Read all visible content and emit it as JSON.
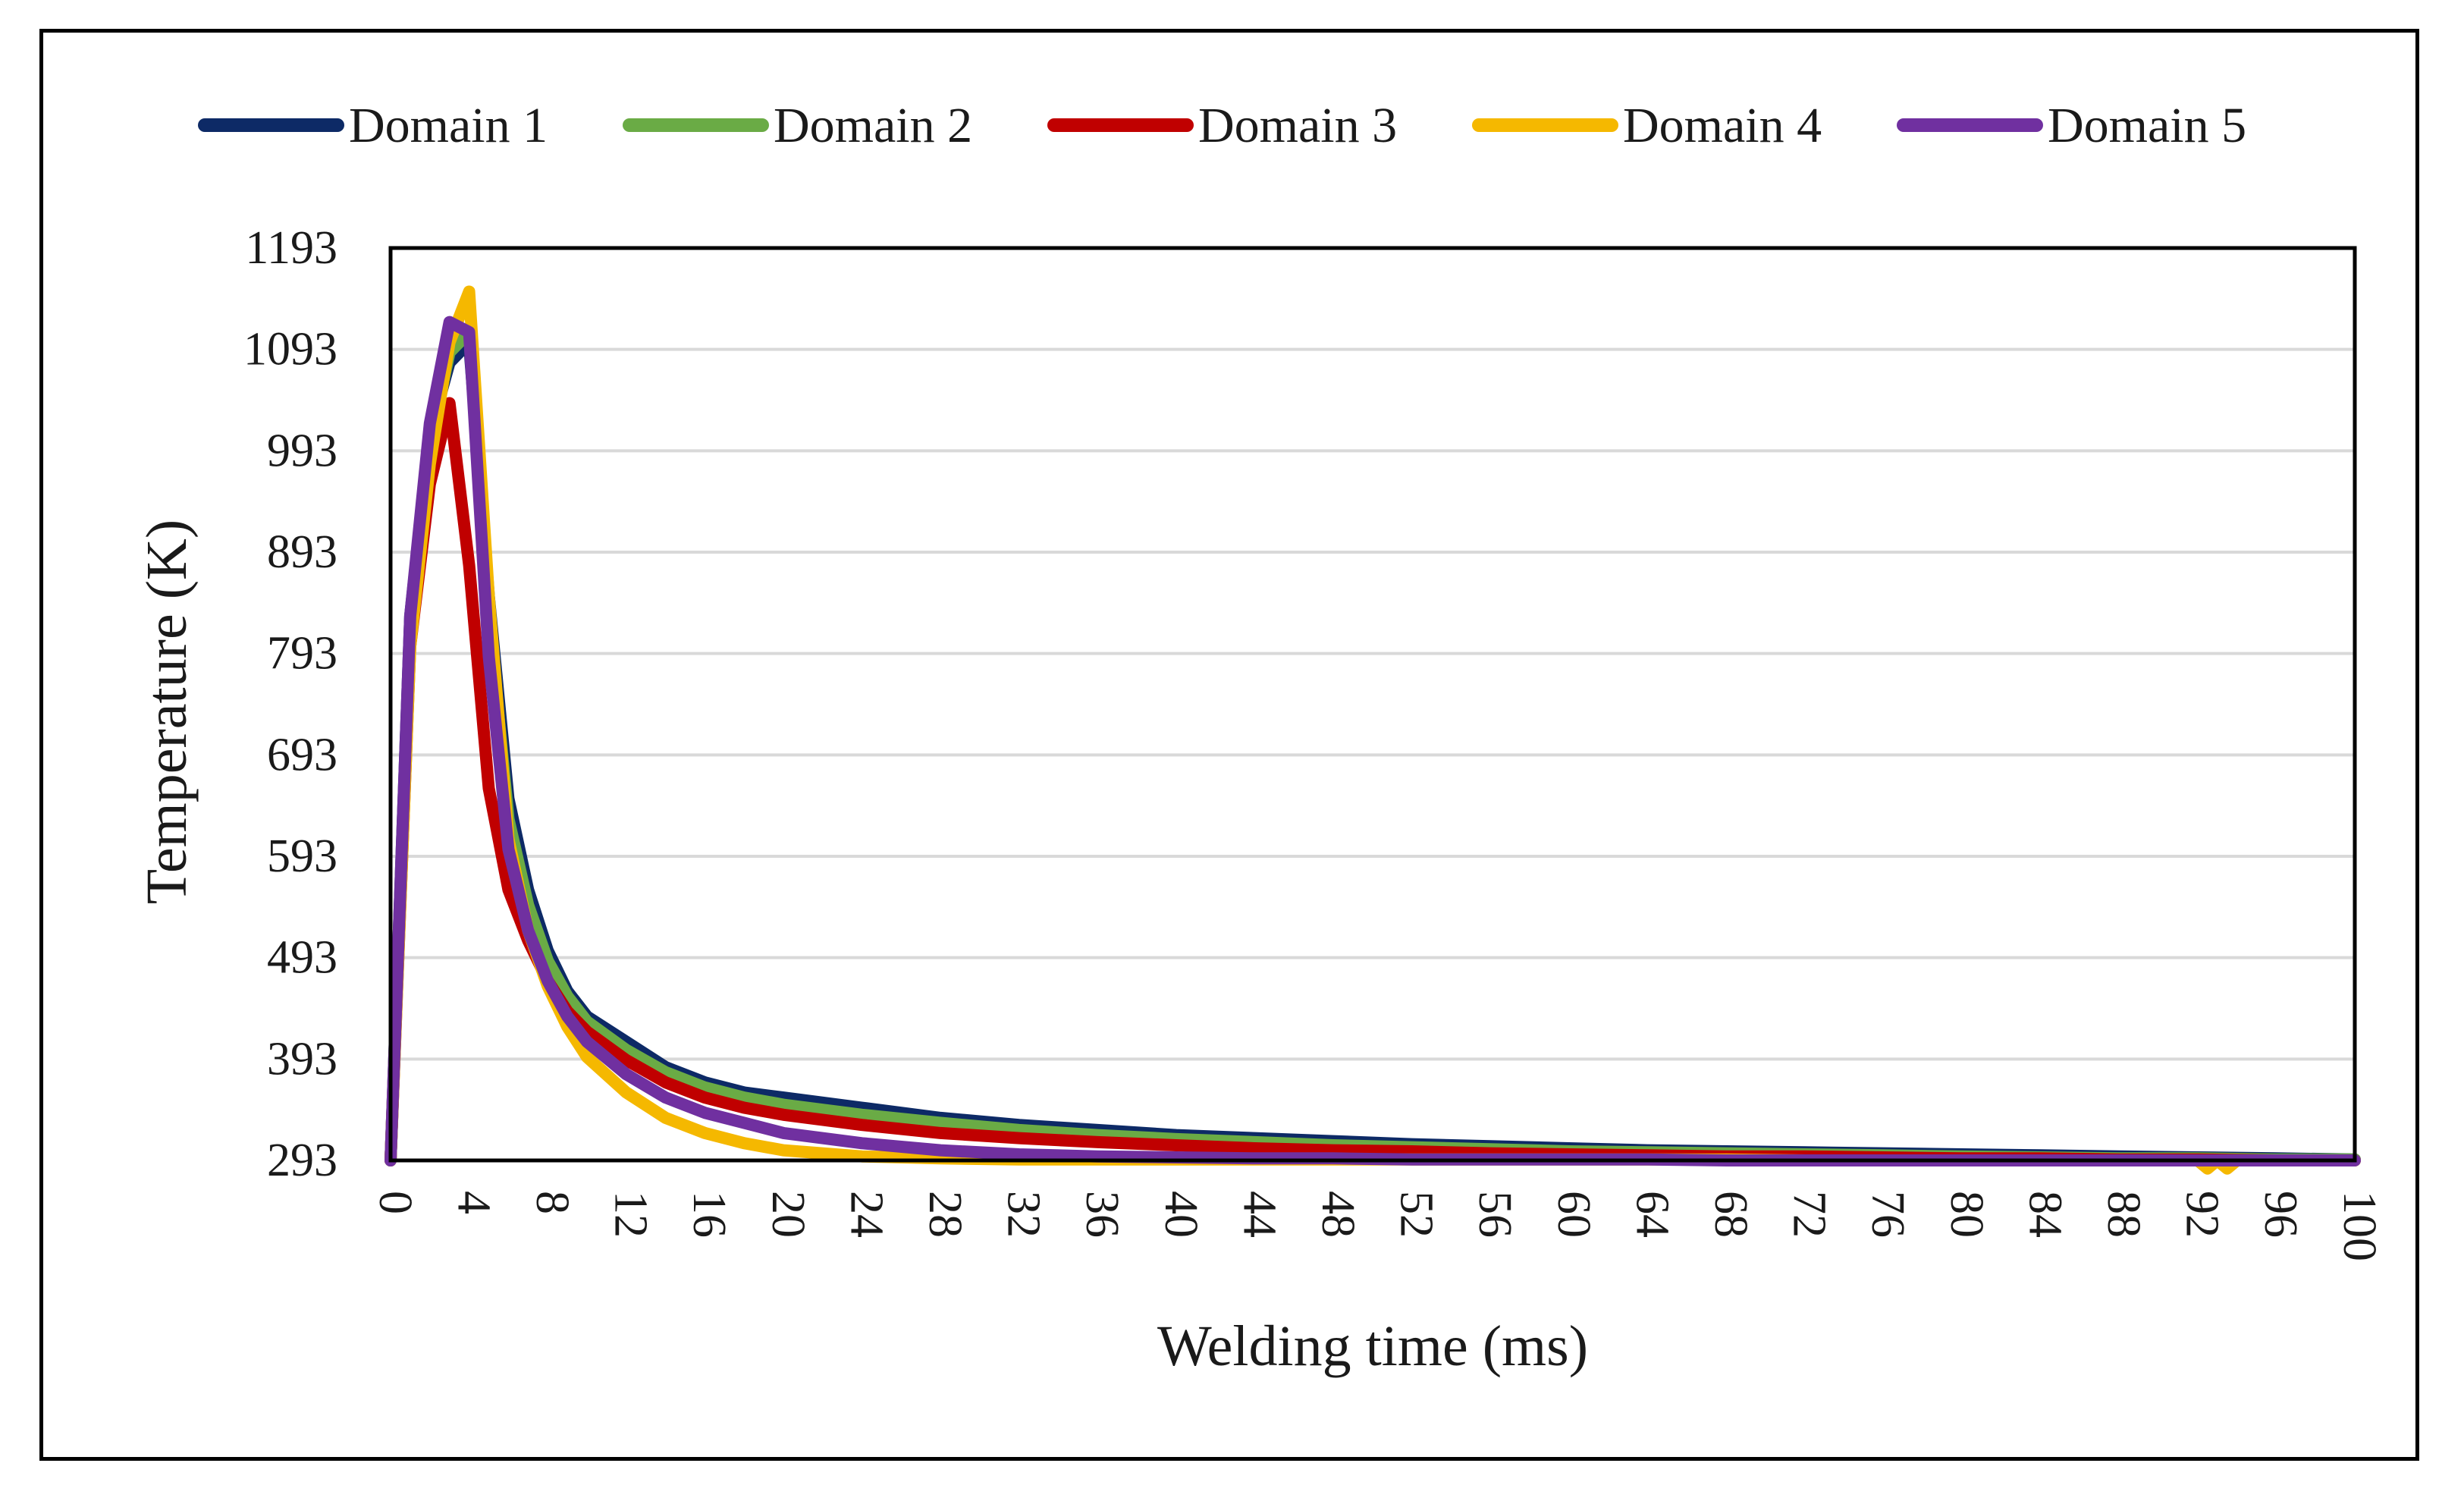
{
  "chart_data": {
    "type": "line",
    "title": "",
    "xlabel": "Welding time (ms)",
    "ylabel": "Temperature (K)",
    "xlim": [
      0,
      100
    ],
    "ylim": [
      293,
      1193
    ],
    "x_ticks": [
      "0",
      "4",
      "8",
      "12",
      "16",
      "20",
      "24",
      "28",
      "32",
      "36",
      "40",
      "44",
      "48",
      "52",
      "56",
      "60",
      "64",
      "68",
      "72",
      "76",
      "80",
      "84",
      "88",
      "92",
      "96",
      "100"
    ],
    "y_ticks": [
      "1193",
      "1093",
      "993",
      "893",
      "793",
      "693",
      "593",
      "493",
      "393",
      "293"
    ],
    "grid": "horizontal",
    "legend_position": "top",
    "series": [
      {
        "name": "Domain 1",
        "color": "#0d2a66",
        "x": [
          0,
          1,
          2,
          3,
          4,
          5,
          6,
          7,
          8,
          9,
          10,
          12,
          14,
          16,
          18,
          20,
          24,
          28,
          32,
          36,
          40,
          44,
          48,
          52,
          56,
          60,
          64,
          68,
          72,
          76,
          80,
          84,
          88,
          92,
          96,
          100
        ],
        "y": [
          293,
          830,
          1010,
          1080,
          1100,
          850,
          650,
          560,
          500,
          460,
          435,
          410,
          385,
          370,
          360,
          355,
          345,
          335,
          328,
          323,
          318,
          315,
          312,
          309,
          307,
          305,
          303,
          302,
          301,
          300,
          299,
          298,
          297,
          296,
          295,
          294
        ]
      },
      {
        "name": "Domain 2",
        "color": "#6aab45",
        "x": [
          0,
          1,
          2,
          3,
          4,
          5,
          6,
          7,
          8,
          9,
          10,
          12,
          14,
          16,
          18,
          20,
          24,
          28,
          32,
          36,
          40,
          44,
          48,
          52,
          56,
          60,
          64,
          68,
          72,
          76,
          80,
          84,
          88,
          92,
          96,
          100
        ],
        "y": [
          293,
          820,
          1000,
          1090,
          1110,
          830,
          630,
          545,
          490,
          455,
          430,
          402,
          380,
          365,
          355,
          348,
          338,
          330,
          323,
          318,
          314,
          311,
          308,
          306,
          304,
          302,
          301,
          300,
          299,
          298,
          297,
          296,
          295,
          295,
          294,
          294
        ]
      },
      {
        "name": "Domain 3",
        "color": "#c00000",
        "x": [
          0,
          1,
          2,
          3,
          4,
          5,
          6,
          7,
          8,
          9,
          10,
          12,
          14,
          16,
          18,
          20,
          24,
          28,
          32,
          36,
          40,
          44,
          48,
          52,
          56,
          60,
          64,
          68,
          72,
          76,
          80,
          84,
          88,
          92,
          96,
          100
        ],
        "y": [
          293,
          800,
          960,
          1040,
          880,
          660,
          560,
          510,
          470,
          440,
          420,
          392,
          370,
          355,
          345,
          338,
          328,
          320,
          315,
          311,
          308,
          305,
          303,
          302,
          300,
          299,
          298,
          297,
          297,
          296,
          295,
          295,
          294,
          294,
          293,
          293
        ]
      },
      {
        "name": "Domain 4",
        "color": "#f5b800",
        "x": [
          0,
          1,
          2,
          3,
          4,
          5,
          6,
          7,
          8,
          9,
          10,
          12,
          14,
          16,
          18,
          20,
          24,
          28,
          32,
          36,
          40,
          44,
          48,
          52,
          56,
          60,
          64,
          68,
          72,
          76,
          80,
          84,
          88,
          92,
          92.5,
          93,
          93.5,
          94,
          96,
          100
        ],
        "y": [
          293,
          800,
          980,
          1100,
          1150,
          850,
          610,
          520,
          465,
          425,
          395,
          360,
          335,
          320,
          310,
          303,
          297,
          295,
          294,
          294,
          294,
          294,
          294,
          294,
          294,
          294,
          294,
          294,
          293,
          293,
          293,
          293,
          293,
          293,
          285,
          293,
          285,
          293,
          293,
          293
        ]
      },
      {
        "name": "Domain 5",
        "color": "#7030a0",
        "x": [
          0,
          1,
          2,
          3,
          4,
          5,
          6,
          7,
          8,
          9,
          10,
          12,
          14,
          16,
          18,
          20,
          24,
          28,
          32,
          36,
          40,
          44,
          48,
          52,
          56,
          60,
          64,
          68,
          72,
          76,
          80,
          84,
          88,
          92,
          96,
          100
        ],
        "y": [
          293,
          830,
          1020,
          1120,
          1110,
          790,
          600,
          520,
          470,
          435,
          410,
          378,
          355,
          340,
          330,
          320,
          310,
          303,
          299,
          297,
          296,
          295,
          295,
          294,
          294,
          294,
          294,
          293,
          293,
          293,
          293,
          293,
          293,
          293,
          293,
          293
        ]
      }
    ]
  }
}
